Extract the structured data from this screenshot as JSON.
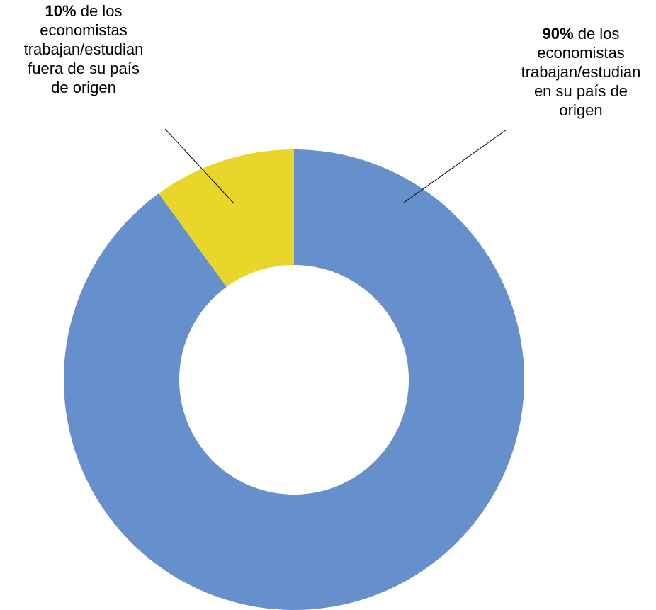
{
  "chart_data": {
    "type": "donut",
    "categories": [
      "de los economistas trabajan/estudian en su país de origen",
      "de los economistas trabajan/estudian fuera de su país de origen"
    ],
    "values": [
      90,
      10
    ],
    "value_labels": [
      "90%",
      "10%"
    ],
    "colors": [
      "#6690cc",
      "#e8d62a"
    ]
  }
}
